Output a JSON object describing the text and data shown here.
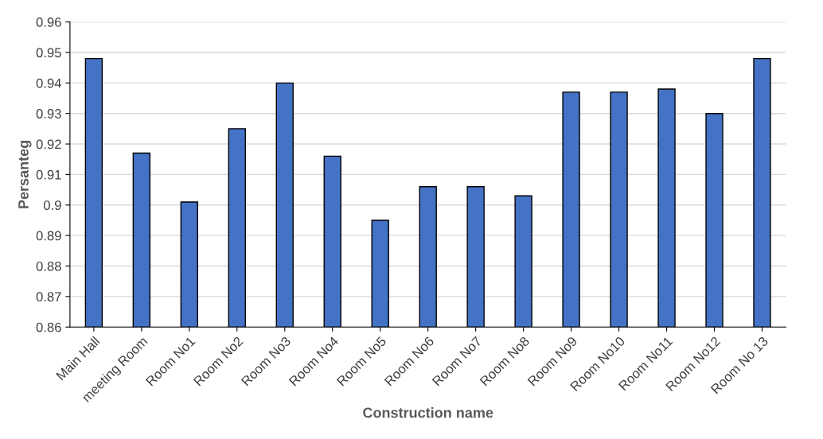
{
  "chart_data": {
    "type": "bar",
    "xlabel": "Construction name",
    "ylabel": "Persanteg",
    "categories": [
      "Main Hall",
      "meeting Room",
      "Room No1",
      "Room No2",
      "Room No3",
      "Room No4",
      "Room No5",
      "Room No6",
      "Room No7",
      "Room No8",
      "Room No9",
      "Room No10",
      "Room No11",
      "Room No12",
      "Room No 13"
    ],
    "values": [
      0.948,
      0.917,
      0.901,
      0.925,
      0.94,
      0.916,
      0.895,
      0.906,
      0.906,
      0.903,
      0.937,
      0.937,
      0.938,
      0.93,
      0.948
    ],
    "color": "#4472c4",
    "ylim": [
      0.86,
      0.96
    ],
    "yticks": [
      0.86,
      0.87,
      0.88,
      0.89,
      0.9,
      0.91,
      0.92,
      0.93,
      0.94,
      0.95,
      0.96
    ],
    "grid": "y",
    "legend": false
  }
}
